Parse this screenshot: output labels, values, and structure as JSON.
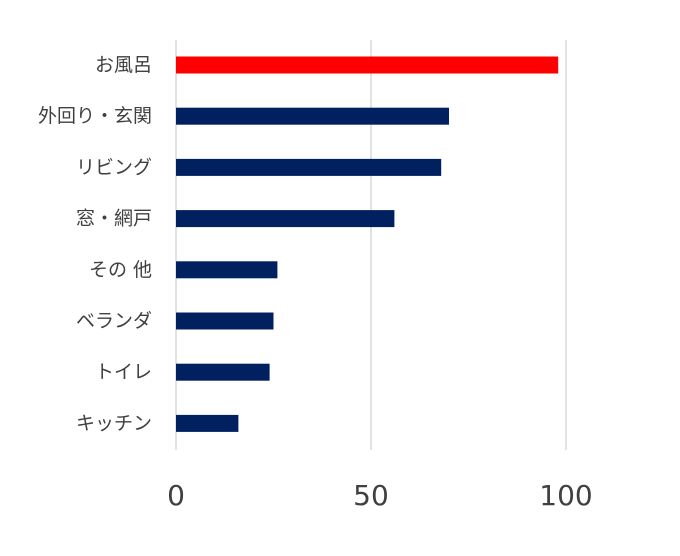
{
  "chart_data": {
    "type": "bar",
    "orientation": "horizontal",
    "categories": [
      "お風呂",
      "外回り・玄関",
      "リビング",
      "窓・網戸",
      "その 他",
      "ベランダ",
      "トイレ",
      "キッチン"
    ],
    "values": [
      98,
      70,
      68,
      56,
      26,
      25,
      24,
      16
    ],
    "xlim": [
      0,
      100
    ],
    "xticks": [
      0,
      50,
      100
    ],
    "grid": true,
    "legend": "none",
    "bar_colors": [
      "#ff0000",
      "#002060",
      "#002060",
      "#002060",
      "#002060",
      "#002060",
      "#002060",
      "#002060"
    ]
  }
}
